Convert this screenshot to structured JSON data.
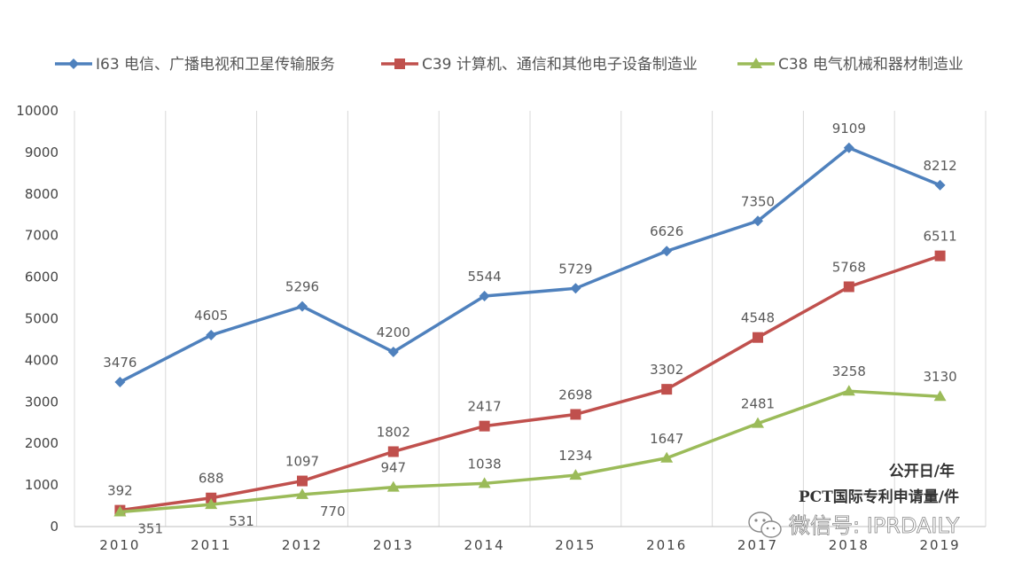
{
  "chart_data": {
    "type": "line",
    "categories": [
      "2010",
      "2011",
      "2012",
      "2013",
      "2014",
      "2015",
      "2016",
      "2017",
      "2018",
      "2019"
    ],
    "ylim": [
      0,
      10000
    ],
    "yticks": [
      0,
      1000,
      2000,
      3000,
      4000,
      5000,
      6000,
      7000,
      8000,
      9000,
      10000
    ],
    "grid": "vertical",
    "legend_position": "top",
    "series": [
      {
        "name": "I63 电信、广播电视和卫星传输服务",
        "color": "#4f81bd",
        "marker": "diamond",
        "values": [
          3476,
          4605,
          5296,
          4200,
          5544,
          5729,
          6626,
          7350,
          9109,
          8212
        ]
      },
      {
        "name": "C39 计算机、通信和其他电子设备制造业",
        "color": "#c0504d",
        "marker": "square",
        "values": [
          392,
          688,
          1097,
          1802,
          2417,
          2698,
          3302,
          4548,
          5768,
          6511
        ]
      },
      {
        "name": "C38 电气机械和器材制造业",
        "color": "#9bbb59",
        "marker": "triangle",
        "values": [
          351,
          531,
          770,
          947,
          1038,
          1234,
          1647,
          2481,
          3258,
          3130
        ]
      }
    ],
    "annotations": [
      "公开日/年",
      "PCT国际专利申请量/件"
    ]
  },
  "watermark": {
    "text": "微信号: IPRDAILY",
    "icon": "wechat-icon"
  }
}
